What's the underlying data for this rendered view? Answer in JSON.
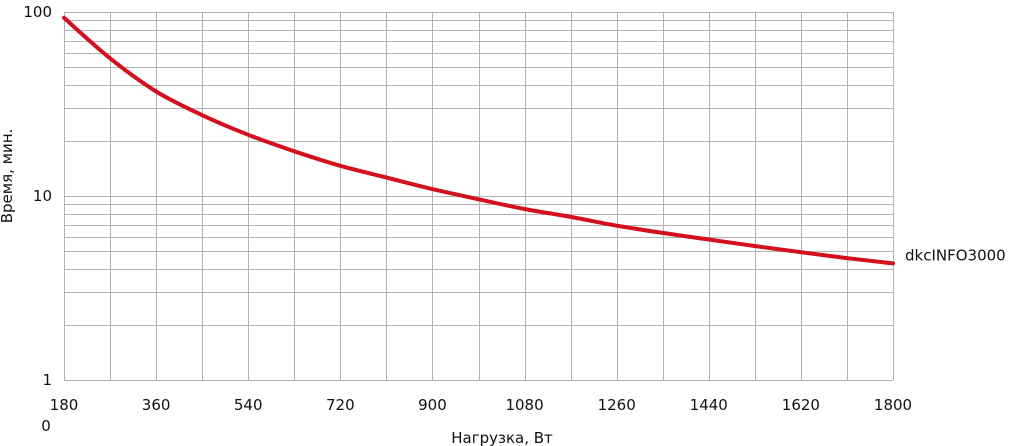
{
  "chart_data": {
    "type": "line",
    "xlabel": "Нагрузка, Вт",
    "ylabel": "Время, мин.",
    "x_scale": "linear",
    "y_scale": "log",
    "xlim": [
      180,
      1800
    ],
    "ylim": [
      1,
      100
    ],
    "x_ticks": [
      180,
      360,
      540,
      720,
      900,
      1080,
      1260,
      1440,
      1620,
      1800
    ],
    "x_tick_labels": [
      "180",
      "360",
      "540",
      "720",
      "900",
      "1080",
      "1260",
      "1440",
      "1620",
      "1800"
    ],
    "y_tick_labels": [
      "1",
      "10",
      "100"
    ],
    "extra_label": "0",
    "grid": true,
    "colors": {
      "series": "#d40f1e",
      "grid": "#b3b3b3"
    },
    "series": [
      {
        "name": "dkcINFO3000",
        "x": [
          180,
          270,
          360,
          450,
          540,
          630,
          720,
          810,
          900,
          990,
          1080,
          1170,
          1260,
          1350,
          1440,
          1530,
          1620,
          1710,
          1800
        ],
        "y": [
          93,
          56,
          37,
          27.5,
          21.5,
          17.5,
          14.6,
          12.6,
          10.9,
          9.6,
          8.5,
          7.7,
          6.9,
          6.3,
          5.8,
          5.35,
          4.95,
          4.6,
          4.3
        ]
      }
    ]
  }
}
